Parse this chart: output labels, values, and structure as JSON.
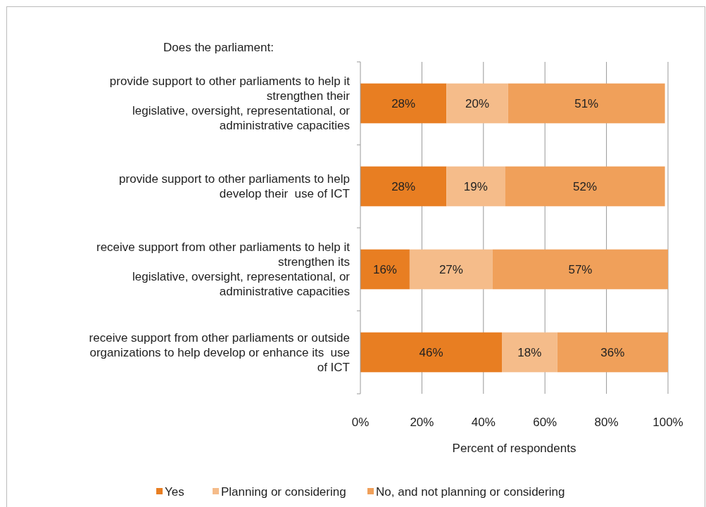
{
  "chart_data": {
    "type": "bar",
    "orientation": "horizontal",
    "stacked": true,
    "title": "Does the parliament:",
    "xlabel": "Percent of respondents",
    "categories": [
      "provide support to other parliaments to help it\nstrengthen their\nlegislative, oversight, representational, or\nadministrative capacities",
      "provide support to other parliaments to help\ndevelop their  use of ICT",
      "receive support from other parliaments to help it\nstrengthen its\nlegislative, oversight, representational, or\nadministrative capacities",
      "receive support from other parliaments or outside\norganizations to help develop or enhance its  use\nof ICT"
    ],
    "series": [
      {
        "name": "Yes",
        "color": "#e87e22",
        "values": [
          28,
          28,
          16,
          46
        ],
        "value_labels": [
          "28%",
          "28%",
          "16%",
          "46%"
        ]
      },
      {
        "name": "Planning or considering",
        "color": "#f5bc8a",
        "values": [
          20,
          19,
          27,
          18
        ],
        "value_labels": [
          "20%",
          "19%",
          "27%",
          "18%"
        ]
      },
      {
        "name": "No, and not planning or considering",
        "color": "#f0a05a",
        "values": [
          51,
          52,
          57,
          36
        ],
        "value_labels": [
          "51%",
          "52%",
          "57%",
          "36%"
        ]
      }
    ],
    "xlim": [
      0,
      100
    ],
    "xticks": [
      {
        "value": 0,
        "label": "0%"
      },
      {
        "value": 20,
        "label": "20%"
      },
      {
        "value": 40,
        "label": "40%"
      },
      {
        "value": 60,
        "label": "60%"
      },
      {
        "value": 80,
        "label": "80%"
      },
      {
        "value": 100,
        "label": "100%"
      }
    ],
    "grid": "x",
    "legend": "bottom"
  }
}
